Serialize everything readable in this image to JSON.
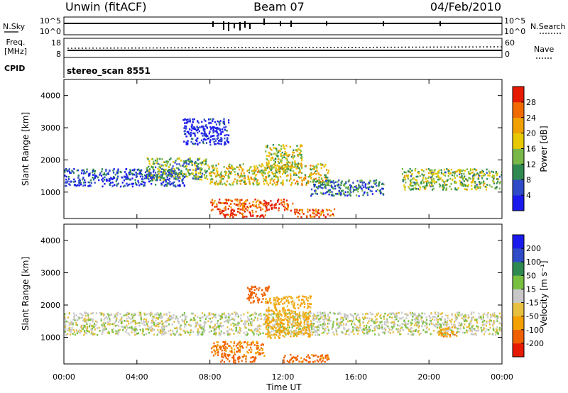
{
  "header": {
    "station": "Unwin (fitACF)",
    "beam": "Beam 07",
    "date": "04/Feb/2010"
  },
  "top_panels": {
    "noise": {
      "left_label": "N.Sky",
      "right_label": "N.Search",
      "left_ticks": [
        "10^5",
        "10^0"
      ],
      "right_ticks": [
        "10^5",
        "10^0"
      ]
    },
    "freq": {
      "left_label": "Freq.",
      "left_unit": "[MHz]",
      "right_label": "Nave",
      "left_ticks": [
        "18",
        "8"
      ],
      "right_ticks": [
        "60",
        "0"
      ]
    },
    "cpid": {
      "label": "CPID",
      "value": "stereo_scan 8551"
    }
  },
  "colors": {
    "power": [
      "#1a1aee",
      "#2f4bc8",
      "#2f8a52",
      "#78b848",
      "#e8c800",
      "#f0a000",
      "#f06a00",
      "#e61a00"
    ],
    "velocity": [
      "#e61a00",
      "#f06000",
      "#f4a000",
      "#e8c040",
      "#c8c8c8",
      "#78c040",
      "#2f8a52",
      "#2f4bc8",
      "#1a1aee"
    ]
  },
  "chart_data": [
    {
      "type": "heatmap",
      "name": "power",
      "ylabel": "Slant Range [km]",
      "ylim": [
        180,
        4500
      ],
      "y_ticks": [
        1000,
        2000,
        3000,
        4000
      ],
      "xlim": [
        0,
        24
      ],
      "x_ticks": [
        "00:00",
        "04:00",
        "08:00",
        "12:00",
        "16:00",
        "20:00",
        "00:00"
      ],
      "colorbar": {
        "label": "Power [dB]",
        "ticks": [
          4,
          8,
          12,
          16,
          20,
          24,
          28
        ],
        "range": [
          0,
          32
        ]
      },
      "echo_bands": [
        {
          "t0": 0.0,
          "t1": 6.6,
          "r0": 1200,
          "r1": 1750,
          "level": 0.15
        },
        {
          "t0": 4.5,
          "t1": 7.8,
          "r0": 1400,
          "r1": 2100,
          "level": 0.4
        },
        {
          "t0": 7.8,
          "t1": 14.5,
          "r0": 1250,
          "r1": 1900,
          "level": 0.55
        },
        {
          "t0": 8.0,
          "t1": 12.5,
          "r0": 450,
          "r1": 800,
          "level": 0.85
        },
        {
          "t0": 8.5,
          "t1": 11.0,
          "r0": 250,
          "r1": 450,
          "level": 0.95
        },
        {
          "t0": 12.5,
          "t1": 14.8,
          "r0": 250,
          "r1": 500,
          "level": 0.8
        },
        {
          "t0": 11.0,
          "t1": 13.0,
          "r0": 1700,
          "r1": 2500,
          "level": 0.5
        },
        {
          "t0": 13.5,
          "t1": 17.5,
          "r0": 900,
          "r1": 1400,
          "level": 0.25
        },
        {
          "t0": 18.5,
          "t1": 24.0,
          "r0": 1100,
          "r1": 1750,
          "level": 0.45
        },
        {
          "t0": 6.5,
          "t1": 9.0,
          "r0": 2500,
          "r1": 3300,
          "level": 0.05
        }
      ]
    },
    {
      "type": "heatmap",
      "name": "velocity",
      "ylabel": "Slant Range [km]",
      "ylim": [
        180,
        4500
      ],
      "y_ticks": [
        1000,
        2000,
        3000,
        4000
      ],
      "xlim": [
        0,
        24
      ],
      "x_ticks": [
        "00:00",
        "04:00",
        "08:00",
        "12:00",
        "16:00",
        "20:00",
        "00:00"
      ],
      "xlabel": "Time UT",
      "colorbar": {
        "label": "Velocity [m s⁻¹]",
        "ticks": [
          "200",
          "100",
          "50",
          "15",
          "-15",
          "-50",
          "-100",
          "-200"
        ]
      },
      "echo_bands": [
        {
          "t0": 0.0,
          "t1": 24.0,
          "r0": 1100,
          "r1": 1800,
          "vel": 0
        },
        {
          "t0": 8.0,
          "t1": 11.0,
          "r0": 450,
          "r1": 900,
          "vel": -100
        },
        {
          "t0": 8.5,
          "t1": 10.5,
          "r0": 250,
          "r1": 450,
          "vel": -150
        },
        {
          "t0": 11.0,
          "t1": 13.5,
          "r0": 1000,
          "r1": 2300,
          "vel": -60
        },
        {
          "t0": 12.0,
          "t1": 14.5,
          "r0": 250,
          "r1": 500,
          "vel": -120
        },
        {
          "t0": 20.5,
          "t1": 21.5,
          "r0": 1050,
          "r1": 1350,
          "vel": -80
        },
        {
          "t0": 10.0,
          "t1": 11.2,
          "r0": 2100,
          "r1": 2600,
          "vel": -150
        }
      ]
    }
  ]
}
